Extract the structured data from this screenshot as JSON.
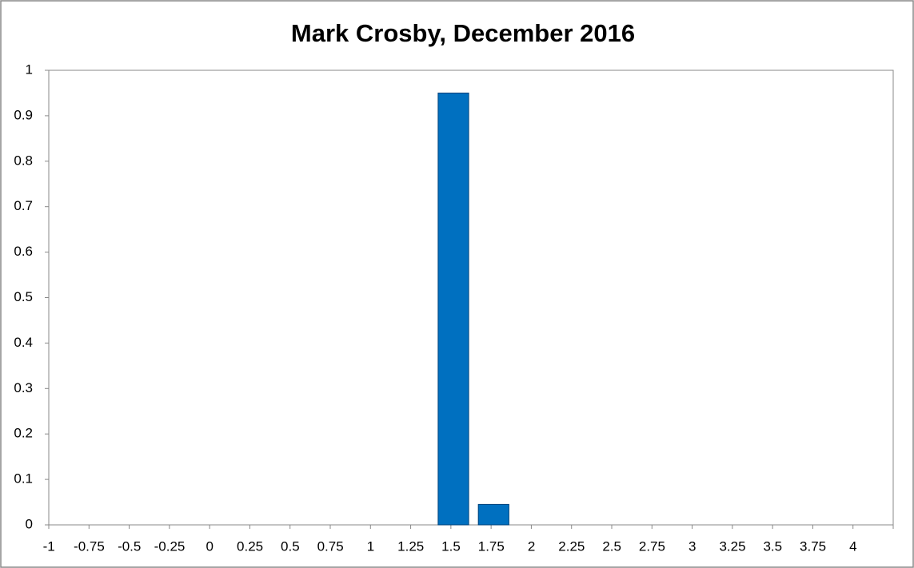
{
  "chart_data": {
    "type": "bar",
    "title": "Mark Crosby, December 2016",
    "categories": [
      "-1",
      "-0.75",
      "-0.5",
      "-0.25",
      "0",
      "0.25",
      "0.5",
      "0.75",
      "1",
      "1.25",
      "1.5",
      "1.75",
      "2",
      "2.25",
      "2.5",
      "2.75",
      "3",
      "3.25",
      "3.5",
      "3.75",
      "4"
    ],
    "values": [
      0,
      0,
      0,
      0,
      0,
      0,
      0,
      0,
      0,
      0,
      0.95,
      0.045,
      0,
      0,
      0,
      0,
      0,
      0,
      0,
      0,
      0
    ],
    "color": "#0070c0",
    "ylim": [
      0,
      1
    ],
    "yticks": [
      0,
      0.1,
      0.2,
      0.3,
      0.4,
      0.5,
      0.6,
      0.7,
      0.8,
      0.9,
      1
    ],
    "grid": false
  }
}
